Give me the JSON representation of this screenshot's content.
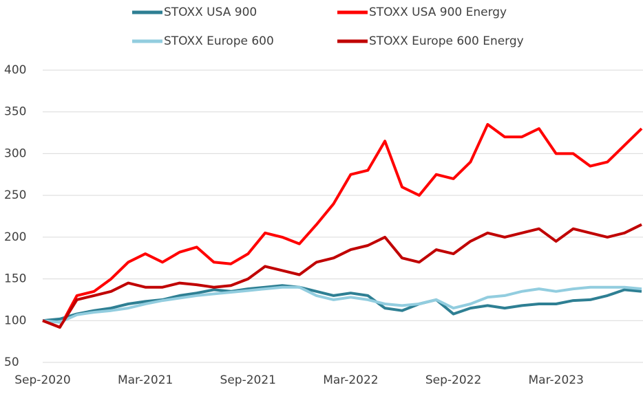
{
  "chart_data": {
    "type": "line",
    "categories": [
      "Sep-2020",
      null,
      null,
      null,
      null,
      null,
      "Mar-2021",
      null,
      null,
      null,
      null,
      null,
      "Sep-2021",
      null,
      null,
      null,
      null,
      null,
      "Mar-2022",
      null,
      null,
      null,
      null,
      null,
      "Sep-2022",
      null,
      null,
      null,
      null,
      null,
      "Mar-2023",
      null,
      null,
      null,
      null,
      null
    ],
    "series": [
      {
        "name": "STOXX USA 900",
        "color": "#2e7f93",
        "values": [
          100,
          102,
          108,
          112,
          115,
          120,
          123,
          125,
          130,
          133,
          137,
          135,
          138,
          140,
          142,
          140,
          135,
          130,
          133,
          130,
          115,
          112,
          120,
          125,
          108,
          115,
          118,
          115,
          118,
          120,
          120,
          124,
          125,
          130,
          137,
          135
        ]
      },
      {
        "name": "STOXX USA 900 Energy",
        "color": "#ff0000",
        "values": [
          100,
          92,
          130,
          135,
          150,
          170,
          180,
          170,
          182,
          188,
          170,
          168,
          180,
          205,
          200,
          192,
          215,
          240,
          275,
          280,
          315,
          260,
          250,
          275,
          270,
          290,
          335,
          320,
          320,
          330,
          300,
          300,
          285,
          290,
          310,
          330
        ]
      },
      {
        "name": "STOXX Europe 600",
        "color": "#92cddf",
        "values": [
          100,
          98,
          107,
          110,
          112,
          115,
          120,
          124,
          127,
          130,
          132,
          134,
          136,
          138,
          140,
          140,
          130,
          125,
          128,
          125,
          120,
          118,
          120,
          125,
          115,
          120,
          128,
          130,
          135,
          138,
          135,
          138,
          140,
          140,
          140,
          138
        ]
      },
      {
        "name": "STOXX Europe 600 Energy",
        "color": "#c00000",
        "values": [
          100,
          92,
          125,
          130,
          135,
          145,
          140,
          140,
          145,
          143,
          140,
          142,
          150,
          165,
          160,
          155,
          170,
          175,
          185,
          190,
          200,
          175,
          170,
          185,
          180,
          195,
          205,
          200,
          205,
          210,
          195,
          210,
          205,
          200,
          205,
          215
        ]
      }
    ],
    "ylim": [
      50,
      400
    ],
    "yticks": [
      50,
      100,
      150,
      200,
      250,
      300,
      350,
      400
    ],
    "grid": true
  }
}
